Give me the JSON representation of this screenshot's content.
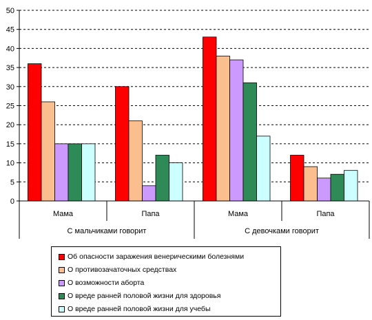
{
  "chart_data": {
    "type": "bar",
    "ylim": [
      0,
      50
    ],
    "ytick_labels": [
      "0",
      "5",
      "10",
      "15",
      "20",
      "25",
      "30",
      "35",
      "40",
      "45",
      "50"
    ],
    "grid": "horizontal dashed",
    "groups": [
      {
        "label": "С мальчиками говорит",
        "categories": [
          "Мама",
          "Папа"
        ]
      },
      {
        "label": "С девочками говорит",
        "categories": [
          "Мама",
          "Папа"
        ]
      }
    ],
    "series": [
      {
        "name": "Об опасности заражения венерическими болезнями",
        "color": "#ff0000",
        "values": [
          36,
          30,
          43,
          12
        ]
      },
      {
        "name": "О противозачаточных средствах",
        "color": "#fbbf8f",
        "values": [
          26,
          21,
          38,
          9
        ]
      },
      {
        "name": "О возможности аборта",
        "color": "#cc99ff",
        "values": [
          15,
          4,
          37,
          6
        ]
      },
      {
        "name": "О вреде ранней половой жизни для здоровья",
        "color": "#2e8b57",
        "values": [
          15,
          12,
          31,
          7
        ]
      },
      {
        "name": "О вреде ранней половой жизни для учебы",
        "color": "#ccffff",
        "values": [
          15,
          10,
          17,
          8
        ]
      }
    ],
    "legend_position": "bottom"
  }
}
